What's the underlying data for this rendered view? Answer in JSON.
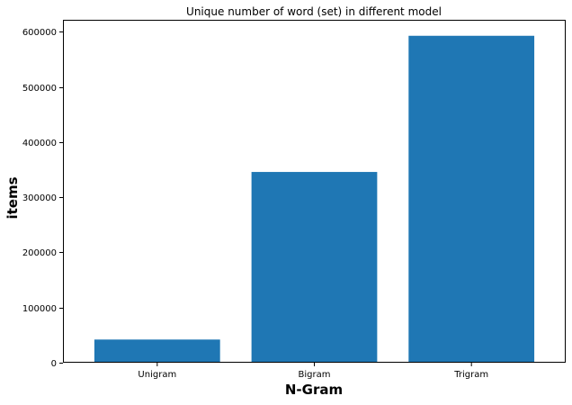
{
  "chart_data": {
    "type": "bar",
    "title": "Unique number of word (set) in different model",
    "xlabel": "N-Gram",
    "ylabel": "items",
    "categories": [
      "Unigram",
      "Bigram",
      "Trigram"
    ],
    "values": [
      42000,
      346000,
      593000
    ],
    "ylim": [
      0,
      622000
    ],
    "yticks": [
      0,
      100000,
      200000,
      300000,
      400000,
      500000,
      600000
    ],
    "ytick_labels": [
      "0",
      "100000",
      "200000",
      "300000",
      "400000",
      "500000",
      "600000"
    ],
    "grid": false,
    "bar_color": "#1f77b4"
  }
}
